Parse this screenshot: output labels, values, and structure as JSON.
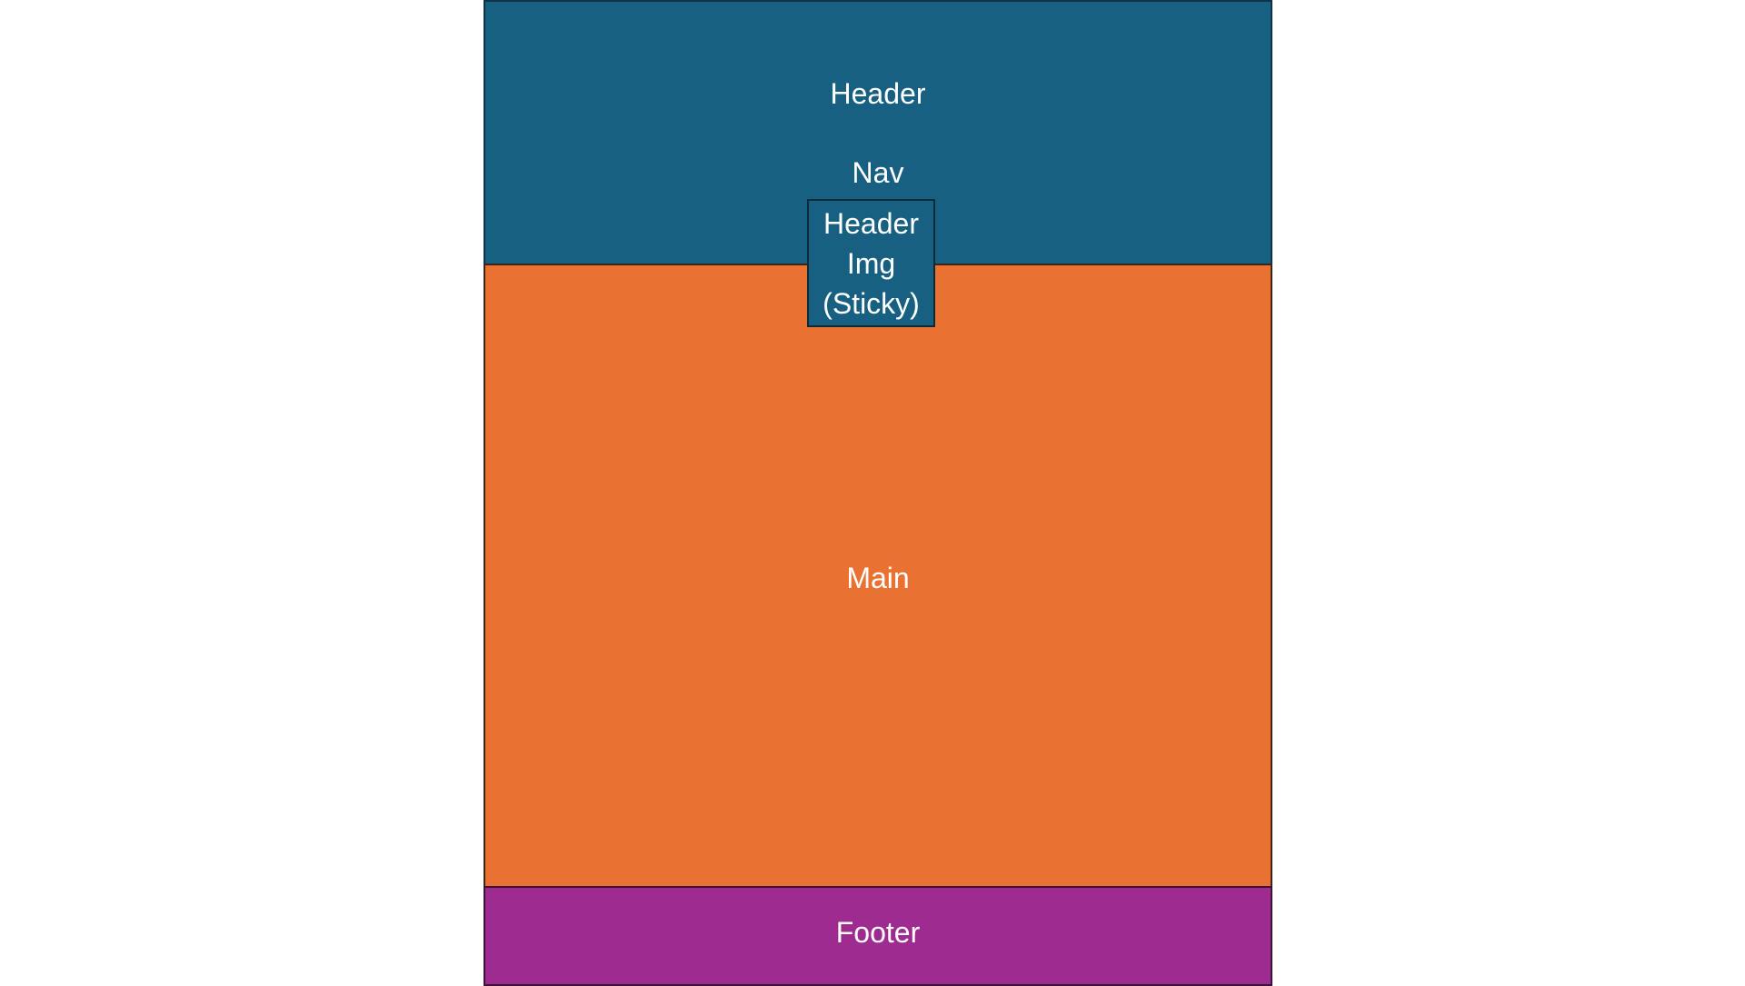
{
  "diagram": {
    "header": {
      "label": "Header"
    },
    "nav": {
      "label": "Nav"
    },
    "header_img": {
      "label": "Header\nImg\n(Sticky)"
    },
    "main": {
      "label": "Main"
    },
    "footer": {
      "label": "Footer"
    }
  },
  "colors": {
    "header": "#176082",
    "main": "#e97233",
    "footer": "#9e2b90",
    "text": "#ffffff"
  }
}
